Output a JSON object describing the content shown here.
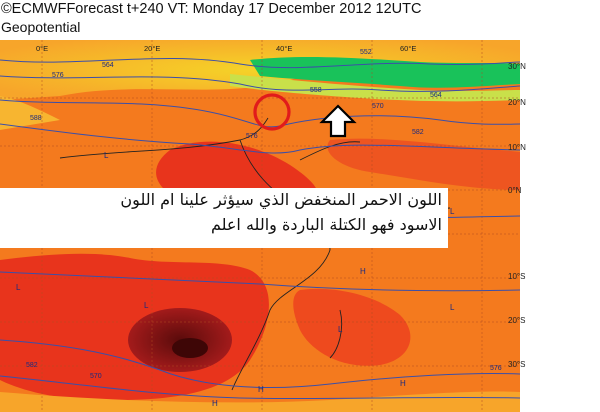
{
  "header": {
    "title": "©ECMWFForecast t+240 VT: Monday 17 December 2012 12UTC",
    "subtitle": "Geopotential"
  },
  "longitude_labels": [
    "0°E",
    "20°E",
    "40°E",
    "60°E"
  ],
  "latitude_labels": [
    "30°N",
    "20°N",
    "10°N",
    "0°N",
    "10°S",
    "20°S",
    "30°S"
  ],
  "contour_labels": [
    "576",
    "564",
    "552",
    "558",
    "570",
    "582",
    "564",
    "588",
    "576",
    "570",
    "582",
    "576"
  ],
  "low_markers": [
    "L",
    "L",
    "L",
    "L",
    "L",
    "L",
    "L"
  ],
  "high_markers": [
    "H",
    "H",
    "H",
    "H",
    "H"
  ],
  "annotation": {
    "line1": "اللون الاحمر المنخفض الذي سيؤثر علينا ام اللون",
    "line2": "الاسود فهو الكتلة الباردة والله اعلم"
  },
  "colors": {
    "warm_red": "#e8341c",
    "orange": "#f47a1e",
    "yellow": "#f5d328",
    "dark_core": "#6e1010",
    "cold_green": "#19c25a",
    "contour": "#3c4fa8",
    "circle": "#e11b1b",
    "arrow": "#000000"
  },
  "icons": [
    "up-arrow-icon",
    "red-circle-marker"
  ]
}
